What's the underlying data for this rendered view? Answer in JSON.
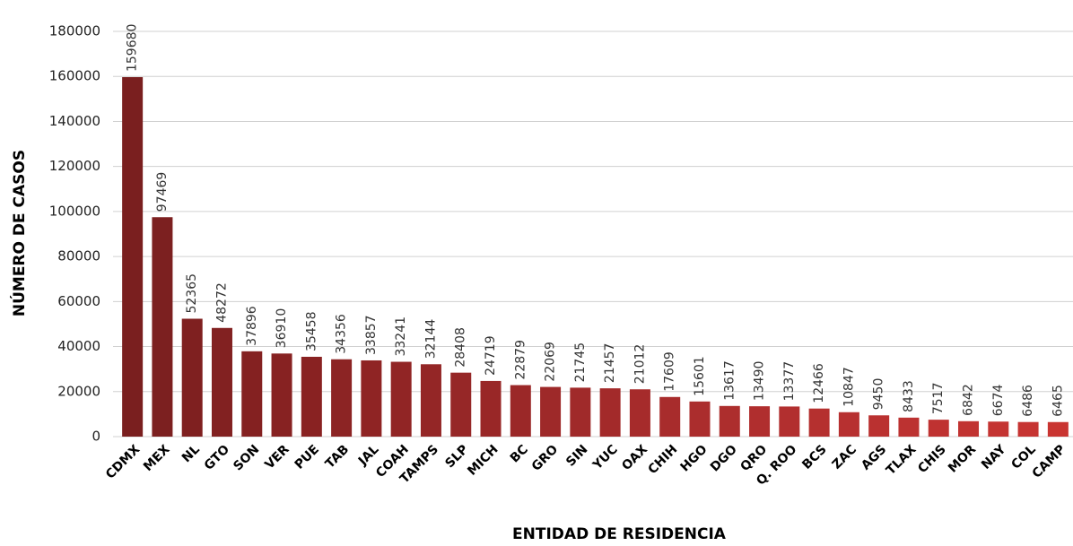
{
  "chart_data": {
    "type": "bar",
    "ylabel": "NÚMERO DE CASOS",
    "xlabel": "ENTIDAD DE RESIDENCIA",
    "categories": [
      "CDMX",
      "MEX",
      "NL",
      "GTO",
      "SON",
      "VER",
      "PUE",
      "TAB",
      "JAL",
      "COAH",
      "TAMPS",
      "SLP",
      "MICH",
      "BC",
      "GRO",
      "SIN",
      "YUC",
      "OAX",
      "CHIH",
      "HGO",
      "DGO",
      "QRO",
      "Q. ROO",
      "BCS",
      "ZAC",
      "AGS",
      "TLAX",
      "CHIS",
      "MOR",
      "NAY",
      "COL",
      "CAMP"
    ],
    "values": [
      159680,
      97469,
      52365,
      48272,
      37896,
      36910,
      35458,
      34356,
      33857,
      33241,
      32144,
      28408,
      24719,
      22879,
      22069,
      21745,
      21457,
      21012,
      17609,
      15601,
      13617,
      13490,
      13377,
      12466,
      10847,
      9450,
      8433,
      7517,
      6842,
      6674,
      6486,
      6465
    ],
    "colors": [
      "#7a1f1f",
      "#7c2020",
      "#7f2020",
      "#822121",
      "#842121",
      "#872222",
      "#892222",
      "#8c2424",
      "#8f2424",
      "#912525",
      "#942626",
      "#962727",
      "#992727",
      "#9b2828",
      "#9e2929",
      "#a02a2a",
      "#a32a2a",
      "#a62b2b",
      "#a82c2c",
      "#ab2d2d",
      "#ad2e2d",
      "#b02e2e",
      "#b22f2f",
      "#b5302f",
      "#b73030",
      "#ba3130",
      "#bc3231",
      "#bf3231",
      "#c13331",
      "#c43432",
      "#c63432",
      "#c93531"
    ],
    "ylim": [
      0,
      180000
    ],
    "yticks": [
      0,
      20000,
      40000,
      60000,
      80000,
      100000,
      120000,
      140000,
      160000,
      180000
    ],
    "grid": true
  }
}
